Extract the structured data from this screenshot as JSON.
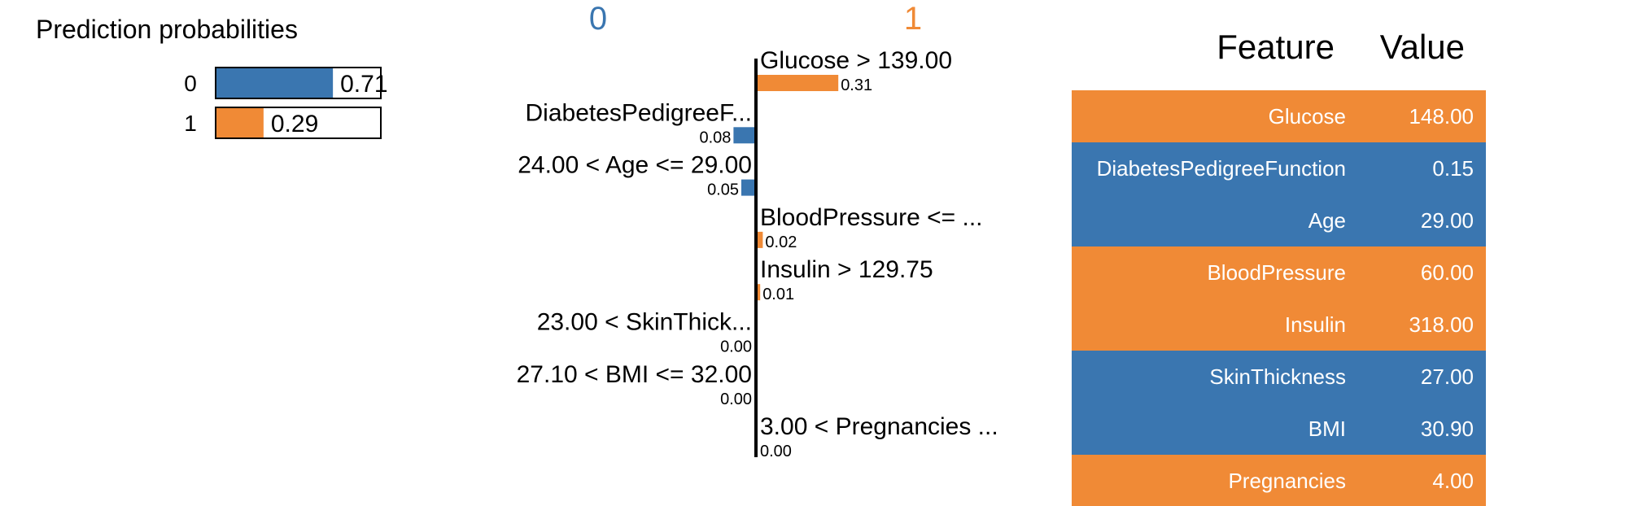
{
  "colors": {
    "class0": "#3a76b0",
    "class1": "#f08a36",
    "text": "#000000",
    "cell_text": "#ffffff"
  },
  "prob_panel": {
    "title": "Prediction probabilities"
  },
  "exp_panel": {
    "left_class": "0",
    "right_class": "1"
  },
  "table_panel": {
    "header_feature": "Feature",
    "header_value": "Value"
  },
  "chart_data": [
    {
      "type": "bar",
      "orientation": "horizontal",
      "title": "Prediction probabilities",
      "categories": [
        "0",
        "1"
      ],
      "values": [
        0.71,
        0.29
      ],
      "value_labels": [
        "0.71",
        "0.29"
      ],
      "xlim": [
        0,
        1
      ]
    },
    {
      "type": "bar",
      "orientation": "horizontal",
      "title": "",
      "class_labels": [
        "0",
        "1"
      ],
      "categories": [
        "Glucose > 139.00",
        "DiabetesPedigreeF...",
        "24.00 < Age <= 29.00",
        "BloodPressure <= ...",
        "Insulin > 129.75",
        "23.00 < SkinThick...",
        "27.10 < BMI <= 32.00",
        "3.00 < Pregnancies ..."
      ],
      "values": [
        0.31,
        -0.08,
        -0.05,
        0.02,
        0.01,
        0.0,
        0.0,
        0.0
      ],
      "value_labels": [
        "0.31",
        "0.08",
        "0.05",
        "0.02",
        "0.01",
        "0.00",
        "0.00",
        "0.00"
      ],
      "side": [
        "1",
        "0",
        "0",
        "1",
        "1",
        "0",
        "0",
        "1"
      ]
    },
    {
      "type": "table",
      "columns": [
        "Feature",
        "Value"
      ],
      "rows": [
        {
          "feature": "Glucose",
          "value": "148.00",
          "class": "1"
        },
        {
          "feature": "DiabetesPedigreeFunction",
          "value": "0.15",
          "class": "0"
        },
        {
          "feature": "Age",
          "value": "29.00",
          "class": "0"
        },
        {
          "feature": "BloodPressure",
          "value": "60.00",
          "class": "1"
        },
        {
          "feature": "Insulin",
          "value": "318.00",
          "class": "1"
        },
        {
          "feature": "SkinThickness",
          "value": "27.00",
          "class": "0"
        },
        {
          "feature": "BMI",
          "value": "30.90",
          "class": "0"
        },
        {
          "feature": "Pregnancies",
          "value": "4.00",
          "class": "1"
        }
      ]
    }
  ]
}
